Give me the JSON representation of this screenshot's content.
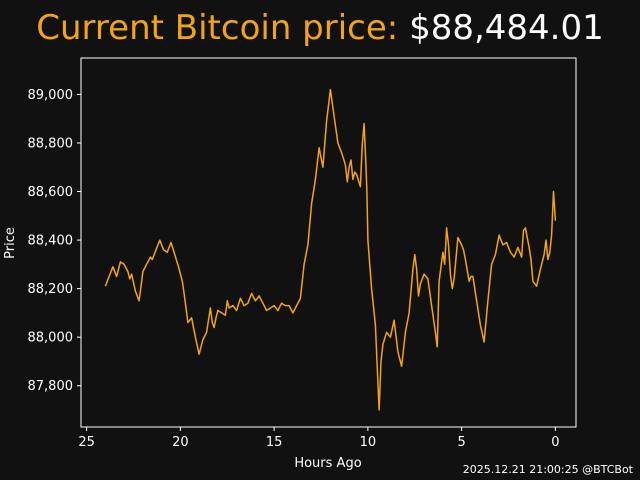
{
  "header": {
    "title_label": "Current Bitcoin price:",
    "title_price": "$88,484.01"
  },
  "footer": {
    "timestamp": "2025.12.21 21:00:25 @BTCBot"
  },
  "colors": {
    "background": "#111111",
    "line": "#f2a414",
    "text": "#ffffff"
  },
  "chart_data": {
    "type": "line",
    "title": "Current Bitcoin price: $88,484.01",
    "xlabel": "Hours Ago",
    "ylabel": "Price",
    "x_reversed": true,
    "xlim": [
      25.3,
      -1.1
    ],
    "ylim": [
      87630,
      89150
    ],
    "x_ticks": [
      25,
      20,
      15,
      10,
      5,
      0
    ],
    "y_ticks": [
      87800,
      88000,
      88200,
      88400,
      88600,
      88800,
      89000
    ],
    "y_tick_labels": [
      "87,800",
      "88,000",
      "88,200",
      "88,400",
      "88,600",
      "88,800",
      "89,000"
    ],
    "grid": false,
    "series": [
      {
        "color": "#f2a414",
        "x": [
          24.0,
          23.8,
          23.6,
          23.4,
          23.2,
          23.0,
          22.8,
          22.7,
          22.6,
          22.4,
          22.2,
          22.0,
          21.8,
          21.6,
          21.5,
          21.3,
          21.1,
          20.9,
          20.7,
          20.5,
          20.3,
          20.1,
          19.9,
          19.8,
          19.6,
          19.4,
          19.2,
          19.0,
          18.8,
          18.6,
          18.4,
          18.3,
          18.2,
          18.1,
          18.0,
          17.8,
          17.6,
          17.5,
          17.4,
          17.2,
          17.0,
          16.8,
          16.6,
          16.4,
          16.2,
          16.0,
          15.8,
          15.6,
          15.4,
          15.2,
          15.0,
          14.8,
          14.6,
          14.4,
          14.2,
          14.0,
          13.8,
          13.6,
          13.4,
          13.2,
          13.0,
          12.8,
          12.6,
          12.4,
          12.2,
          12.0,
          11.8,
          11.6,
          11.4,
          11.2,
          11.1,
          11.0,
          10.9,
          10.8,
          10.7,
          10.6,
          10.4,
          10.3,
          10.2,
          10.1,
          10.05,
          10.0,
          9.9,
          9.8,
          9.6,
          9.4,
          9.3,
          9.2,
          9.0,
          8.8,
          8.6,
          8.4,
          8.2,
          8.0,
          7.8,
          7.6,
          7.5,
          7.4,
          7.3,
          7.2,
          7.0,
          6.8,
          6.6,
          6.4,
          6.3,
          6.2,
          6.0,
          5.9,
          5.8,
          5.7,
          5.6,
          5.5,
          5.4,
          5.2,
          5.0,
          4.9,
          4.8,
          4.6,
          4.5,
          4.4,
          4.2,
          4.0,
          3.8,
          3.6,
          3.4,
          3.2,
          3.0,
          2.8,
          2.6,
          2.4,
          2.2,
          2.0,
          1.8,
          1.7,
          1.6,
          1.4,
          1.3,
          1.2,
          1.0,
          0.8,
          0.6,
          0.5,
          0.4,
          0.3,
          0.2,
          0.1,
          0.0
        ],
        "y": [
          88210,
          88250,
          88290,
          88250,
          88310,
          88300,
          88270,
          88240,
          88260,
          88190,
          88150,
          88270,
          88300,
          88330,
          88320,
          88360,
          88400,
          88360,
          88350,
          88390,
          88340,
          88290,
          88230,
          88180,
          88060,
          88080,
          88000,
          87930,
          87990,
          88020,
          88120,
          88060,
          88040,
          88080,
          88110,
          88100,
          88090,
          88150,
          88120,
          88130,
          88110,
          88160,
          88130,
          88140,
          88180,
          88150,
          88170,
          88140,
          88110,
          88120,
          88130,
          88110,
          88140,
          88130,
          88130,
          88100,
          88130,
          88160,
          88300,
          88380,
          88550,
          88650,
          88780,
          88700,
          88890,
          89020,
          88910,
          88800,
          88760,
          88710,
          88640,
          88700,
          88730,
          88650,
          88680,
          88670,
          88620,
          88790,
          88880,
          88700,
          88600,
          88400,
          88300,
          88200,
          88050,
          87700,
          87900,
          87970,
          88020,
          88000,
          88070,
          87940,
          87880,
          88020,
          88100,
          88280,
          88340,
          88280,
          88170,
          88220,
          88260,
          88240,
          88130,
          88020,
          87960,
          88230,
          88350,
          88300,
          88450,
          88380,
          88260,
          88200,
          88240,
          88410,
          88380,
          88360,
          88320,
          88230,
          88250,
          88250,
          88150,
          88050,
          87980,
          88150,
          88300,
          88340,
          88420,
          88380,
          88390,
          88350,
          88330,
          88370,
          88330,
          88440,
          88450,
          88370,
          88320,
          88230,
          88210,
          88280,
          88340,
          88400,
          88320,
          88350,
          88420,
          88600,
          88480
        ]
      }
    ]
  }
}
